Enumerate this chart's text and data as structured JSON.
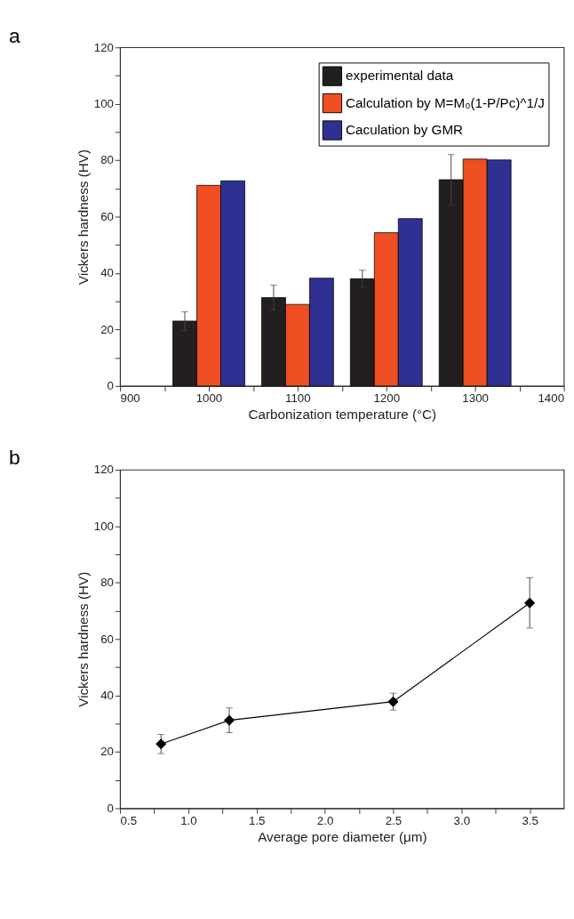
{
  "chart_data": [
    {
      "type": "bar",
      "title": "a",
      "xlabel": "Carbonization temperature (°C)",
      "ylabel": "Vickers hardness (HV)",
      "xlim": [
        900,
        1400
      ],
      "xticks": [
        900,
        {
          "value": 950,
          "label": null
        },
        1000,
        {
          "value": 1050,
          "label": null
        },
        1100,
        {
          "value": 1150,
          "label": null
        },
        1200,
        {
          "value": 1250,
          "label": null
        },
        1300,
        {
          "value": 1350,
          "label": null
        },
        1400
      ],
      "ylim": [
        0,
        120
      ],
      "yticks": [
        0,
        {
          "value": 10,
          "label": null
        },
        20,
        {
          "value": 30,
          "label": null
        },
        40,
        {
          "value": 50,
          "label": null
        },
        60,
        {
          "value": 70,
          "label": null
        },
        80,
        {
          "value": 90,
          "label": null
        },
        100,
        {
          "value": 110,
          "label": null
        },
        120
      ],
      "legend": "top right",
      "grid": false,
      "series": [
        {
          "name": "experimental data",
          "color": "#231f20",
          "x": [
            973,
            1073,
            1173,
            1273
          ],
          "values": [
            23.0,
            31.3,
            38.0,
            73.1
          ],
          "errors": [
            3.3,
            4.4,
            3.0,
            8.9
          ]
        },
        {
          "name": "Calculation by M=M₀(1-P/Pc)^1/J",
          "color": "#f04e23",
          "x": [
            1000,
            1100,
            1200,
            1300
          ],
          "values": [
            71.1,
            28.9,
            54.3,
            80.4
          ]
        },
        {
          "name": "Caculation by GMR",
          "color": "#2e3192",
          "x": [
            1027,
            1127,
            1227,
            1327
          ],
          "values": [
            72.7,
            38.2,
            59.3,
            80.1
          ]
        }
      ]
    },
    {
      "type": "line",
      "title": "b",
      "xlabel": "Average pore diameter (μm)",
      "ylabel": "Vickers hardness (HV)",
      "xlim": [
        0.5,
        3.75
      ],
      "xticks": [
        {
          "value": 0.5,
          "label": "0.5"
        },
        {
          "value": 0.75,
          "label": null
        },
        {
          "value": 1.0,
          "label": "1.0"
        },
        {
          "value": 1.25,
          "label": null
        },
        {
          "value": 1.5,
          "label": "1.5"
        },
        {
          "value": 1.75,
          "label": null
        },
        {
          "value": 2.0,
          "label": "2.0"
        },
        {
          "value": 2.25,
          "label": null
        },
        {
          "value": 2.5,
          "label": "2.5"
        },
        {
          "value": 2.75,
          "label": null
        },
        {
          "value": 3.0,
          "label": "3.0"
        },
        {
          "value": 3.25,
          "label": null
        },
        {
          "value": 3.5,
          "label": "3.5"
        }
      ],
      "ylim": [
        0,
        120
      ],
      "yticks": [
        0,
        {
          "value": 10,
          "label": null
        },
        20,
        {
          "value": 30,
          "label": null
        },
        40,
        {
          "value": 50,
          "label": null
        },
        60,
        {
          "value": 70,
          "label": null
        },
        80,
        {
          "value": 90,
          "label": null
        },
        100,
        {
          "value": 110,
          "label": null
        },
        120
      ],
      "grid": false,
      "marker": "diamond",
      "line_style": "solid",
      "series": [
        {
          "color": "#000000",
          "x": [
            0.8,
            1.3,
            2.5,
            3.5
          ],
          "values": [
            22.8,
            31.2,
            37.8,
            72.8
          ],
          "errors": [
            3.4,
            4.4,
            3.0,
            8.9
          ]
        }
      ]
    }
  ]
}
